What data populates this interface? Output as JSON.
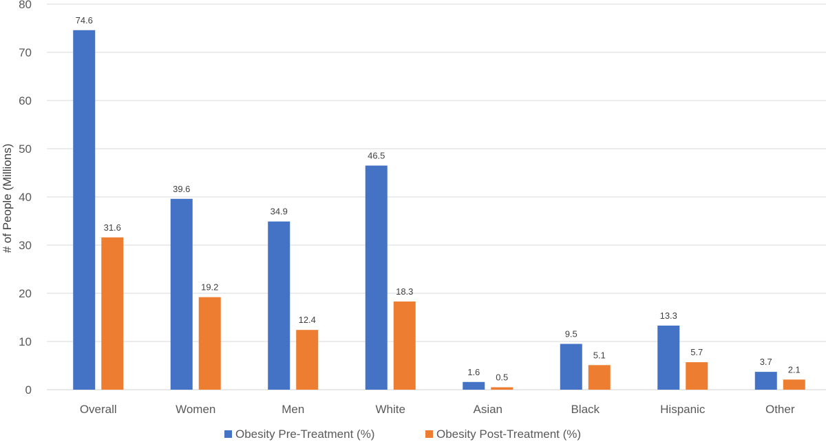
{
  "chart_data": {
    "type": "bar",
    "categories": [
      "Overall",
      "Women",
      "Men",
      "White",
      "Asian",
      "Black",
      "Hispanic",
      "Other"
    ],
    "series": [
      {
        "name": "Obesity Pre-Treatment (%)",
        "color": "#4472C4",
        "values": [
          74.6,
          39.6,
          34.9,
          46.5,
          1.6,
          9.5,
          13.3,
          3.7
        ]
      },
      {
        "name": "Obesity Post-Treatment (%)",
        "color": "#ED7D31",
        "values": [
          31.6,
          19.2,
          12.4,
          18.3,
          0.5,
          5.1,
          5.7,
          2.1
        ]
      }
    ],
    "title": "",
    "xlabel": "",
    "ylabel": "# of People (Millions)",
    "ylim": [
      0,
      80
    ],
    "yticks": [
      0,
      10,
      20,
      30,
      40,
      50,
      60,
      70,
      80
    ],
    "grid": true,
    "legend_position": "bottom",
    "data_labels": true
  }
}
